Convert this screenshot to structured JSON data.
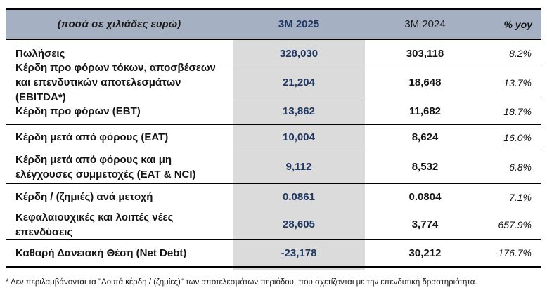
{
  "table": {
    "header": {
      "label": "(ποσά σε χιλιάδες ευρώ)",
      "col_2025": "3M 2025",
      "col_2024": "3M 2024",
      "col_yoy": "% yoy"
    },
    "rows": [
      {
        "label": "Πωλήσεις",
        "v2025": "328,030",
        "v2024": "303,118",
        "yoy": "8.2%"
      },
      {
        "label": "Κέρδη προ φόρων τόκων, αποσβέσεων και επενδυτικών αποτελεσμάτων (EBITDA*)",
        "v2025": "21,204",
        "v2024": "18,648",
        "yoy": "13.7%"
      },
      {
        "label": "Κέρδη προ φόρων (EBT)",
        "v2025": "13,862",
        "v2024": "11,682",
        "yoy": "18.7%"
      },
      {
        "label": "Κέρδη μετά από φόρους (EAT)",
        "v2025": "10,004",
        "v2024": "8,624",
        "yoy": "16.0%"
      },
      {
        "label": "Κέρδη μετά από φόρους και μη ελέγχουσες συμμετοχές (EAT & NCI)",
        "v2025": "9,112",
        "v2024": "8,532",
        "yoy": "6.8%"
      },
      {
        "label": "Κέρδη / (ζημιές) ανά μετοχή",
        "v2025": "0.0861",
        "v2024": "0.0804",
        "yoy": "7.1%"
      },
      {
        "label": "Κεφαλαιουχικές και λοιπές νέες επενδύσεις",
        "v2025": "28,605",
        "v2024": "3,774",
        "yoy": "657.9%"
      },
      {
        "label": "Καθαρή Δανειακή Θέση (Net Debt)",
        "v2025": "-23,178",
        "v2024": "30,212",
        "yoy": "-176.7%"
      }
    ],
    "footnote": "* Δεν περιλαμβάνονται τα \"Λοιπά κέρδη / (ζημίες)\" των αποτελεσμάτων περιόδου, που σχετίζονται με την επενδυτική δραστηριότητα.",
    "colors": {
      "header_bg": "#A6B0C3",
      "highlight_col_bg": "#DBDBDB",
      "accent_navy": "#1F3864"
    }
  }
}
